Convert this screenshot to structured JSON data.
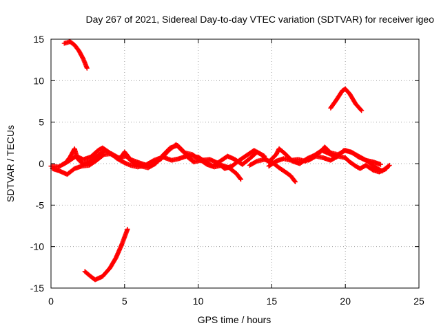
{
  "chart_data": {
    "type": "scatter",
    "title": "Day 267 of 2021, Sidereal Day-to-day VTEC variation (SDTVAR) for receiver igeo",
    "xlabel": "GPS time / hours",
    "ylabel": "SDTVAR / TECUs",
    "xlim": [
      0,
      25
    ],
    "ylim": [
      -15,
      15
    ],
    "xticks": [
      0,
      5,
      10,
      15,
      20,
      25
    ],
    "yticks": [
      -15,
      -10,
      -5,
      0,
      5,
      10,
      15
    ],
    "grid": true,
    "marker": "+",
    "color": "#ff0000",
    "series": [
      {
        "name": "arc-top-left",
        "points": [
          [
            0.9,
            14.5
          ],
          [
            1.3,
            14.7
          ],
          [
            1.6,
            14.3
          ],
          [
            1.9,
            13.6
          ],
          [
            2.2,
            12.6
          ],
          [
            2.45,
            11.5
          ]
        ]
      },
      {
        "name": "arc-bottom-left",
        "points": [
          [
            2.3,
            -13.0
          ],
          [
            2.7,
            -13.6
          ],
          [
            3.0,
            -14.0
          ],
          [
            3.5,
            -13.6
          ],
          [
            4.0,
            -12.6
          ],
          [
            4.4,
            -11.4
          ],
          [
            4.8,
            -9.8
          ],
          [
            5.2,
            -7.9
          ]
        ]
      },
      {
        "name": "arc-peak-20h",
        "points": [
          [
            19.0,
            6.7
          ],
          [
            19.4,
            7.7
          ],
          [
            19.8,
            8.8
          ],
          [
            20.0,
            9.0
          ],
          [
            20.3,
            8.4
          ],
          [
            20.7,
            7.2
          ],
          [
            21.1,
            6.4
          ]
        ]
      },
      {
        "name": "arc-a",
        "points": [
          [
            0.0,
            -0.3
          ],
          [
            0.5,
            -0.4
          ],
          [
            1.0,
            0.1
          ],
          [
            1.3,
            0.8
          ],
          [
            1.6,
            1.8
          ],
          [
            1.8,
            0.6
          ],
          [
            2.2,
            -0.1
          ],
          [
            2.7,
            0.3
          ],
          [
            3.2,
            1.0
          ],
          [
            3.7,
            1.6
          ],
          [
            4.2,
            1.0
          ],
          [
            4.7,
            0.6
          ],
          [
            5.0,
            1.4
          ],
          [
            5.4,
            0.5
          ],
          [
            6.0,
            0.1
          ],
          [
            6.5,
            -0.2
          ],
          [
            7.0,
            0.0
          ],
          [
            7.5,
            0.6
          ],
          [
            8.0,
            1.6
          ],
          [
            8.5,
            2.3
          ],
          [
            9.0,
            1.4
          ],
          [
            9.5,
            0.8
          ],
          [
            10.0,
            0.8
          ],
          [
            10.5,
            0.2
          ],
          [
            11.0,
            -0.3
          ],
          [
            11.5,
            0.3
          ],
          [
            12.0,
            0.9
          ],
          [
            12.5,
            0.5
          ],
          [
            13.0,
            -0.1
          ],
          [
            13.5,
            0.6
          ],
          [
            14.0,
            1.4
          ],
          [
            14.5,
            0.9
          ]
        ]
      },
      {
        "name": "arc-b",
        "points": [
          [
            0.1,
            -0.6
          ],
          [
            0.6,
            -0.9
          ],
          [
            1.1,
            -1.3
          ],
          [
            1.6,
            -0.6
          ],
          [
            2.1,
            -0.3
          ],
          [
            2.6,
            -0.2
          ],
          [
            3.1,
            0.4
          ],
          [
            3.6,
            1.1
          ],
          [
            4.1,
            1.2
          ],
          [
            4.6,
            0.7
          ],
          [
            5.1,
            0.9
          ],
          [
            5.6,
            0.1
          ],
          [
            6.1,
            -0.3
          ],
          [
            6.6,
            -0.5
          ],
          [
            7.1,
            0.0
          ],
          [
            7.6,
            1.0
          ],
          [
            8.1,
            1.9
          ],
          [
            8.6,
            2.2
          ],
          [
            9.1,
            1.3
          ],
          [
            9.6,
            1.1
          ],
          [
            10.1,
            0.5
          ],
          [
            10.6,
            -0.1
          ],
          [
            11.1,
            -0.4
          ],
          [
            11.6,
            -0.2
          ],
          [
            12.1,
            -0.5
          ],
          [
            12.6,
            -1.2
          ],
          [
            12.9,
            -1.9
          ]
        ]
      },
      {
        "name": "arc-c",
        "points": [
          [
            0.8,
            -0.1
          ],
          [
            1.2,
            0.3
          ],
          [
            1.7,
            0.9
          ],
          [
            2.2,
            0.5
          ],
          [
            2.7,
            0.8
          ],
          [
            3.2,
            1.6
          ],
          [
            3.5,
            1.9
          ],
          [
            4.0,
            1.3
          ],
          [
            4.5,
            0.6
          ],
          [
            5.0,
            0.1
          ],
          [
            5.4,
            -0.2
          ],
          [
            5.9,
            -0.4
          ],
          [
            6.4,
            -0.2
          ],
          [
            7.0,
            0.4
          ],
          [
            7.6,
            0.8
          ],
          [
            8.2,
            0.4
          ],
          [
            8.7,
            0.6
          ],
          [
            9.2,
            0.9
          ],
          [
            9.7,
            0.2
          ],
          [
            10.2,
            0.4
          ],
          [
            10.8,
            0.5
          ],
          [
            11.3,
            0.1
          ],
          [
            11.8,
            -0.6
          ],
          [
            12.3,
            -0.3
          ],
          [
            12.8,
            0.4
          ],
          [
            13.3,
            1.0
          ],
          [
            13.8,
            1.6
          ],
          [
            14.3,
            1.1
          ],
          [
            14.8,
            0.2
          ],
          [
            15.3,
            1.1
          ],
          [
            15.5,
            1.8
          ],
          [
            15.9,
            1.2
          ],
          [
            16.4,
            0.3
          ],
          [
            16.9,
            0.0
          ],
          [
            17.4,
            0.6
          ],
          [
            17.9,
            1.0
          ],
          [
            18.4,
            1.6
          ],
          [
            18.9,
            1.2
          ],
          [
            19.4,
            0.8
          ],
          [
            19.9,
            1.6
          ],
          [
            20.4,
            1.4
          ],
          [
            20.9,
            0.8
          ],
          [
            21.4,
            0.4
          ],
          [
            21.9,
            0.2
          ],
          [
            22.4,
            -0.1
          ]
        ]
      },
      {
        "name": "arc-d",
        "points": [
          [
            13.5,
            -0.2
          ],
          [
            14.0,
            0.3
          ],
          [
            14.5,
            0.5
          ],
          [
            15.0,
            0.2
          ],
          [
            15.5,
            -0.5
          ],
          [
            16.0,
            -1.1
          ],
          [
            16.3,
            -1.5
          ],
          [
            16.6,
            -2.2
          ]
        ]
      },
      {
        "name": "arc-e",
        "points": [
          [
            14.8,
            -0.3
          ],
          [
            15.3,
            0.3
          ],
          [
            15.8,
            0.6
          ],
          [
            16.3,
            0.4
          ],
          [
            16.8,
            0.5
          ],
          [
            17.3,
            0.3
          ],
          [
            17.8,
            0.8
          ],
          [
            18.3,
            1.4
          ],
          [
            18.6,
            2.0
          ],
          [
            19.0,
            1.3
          ],
          [
            19.5,
            1.1
          ],
          [
            20.0,
            1.6
          ],
          [
            20.5,
            1.3
          ],
          [
            21.0,
            0.8
          ],
          [
            21.5,
            0.3
          ],
          [
            22.0,
            -0.4
          ],
          [
            22.5,
            -0.9
          ],
          [
            23.0,
            -0.2
          ]
        ]
      },
      {
        "name": "arc-f",
        "points": [
          [
            17.5,
            0.4
          ],
          [
            18.0,
            0.9
          ],
          [
            18.5,
            0.7
          ],
          [
            19.0,
            0.4
          ],
          [
            19.5,
            0.9
          ],
          [
            20.0,
            0.7
          ],
          [
            20.3,
            0.2
          ],
          [
            20.7,
            -0.3
          ],
          [
            21.0,
            -0.6
          ],
          [
            21.4,
            -0.2
          ],
          [
            21.9,
            -0.8
          ],
          [
            22.3,
            -1.0
          ],
          [
            22.8,
            -0.6
          ]
        ]
      }
    ]
  }
}
